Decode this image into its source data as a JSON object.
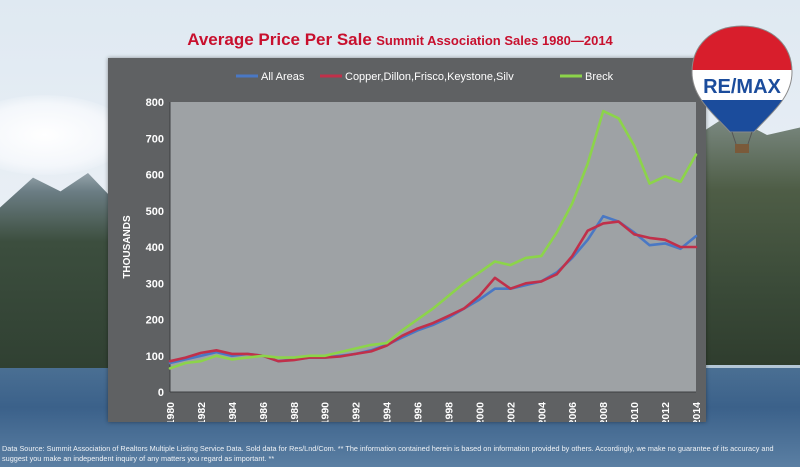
{
  "title": "Average Price Per Sale",
  "subtitle": "Summit Association Sales 1980—2014",
  "logo_text": "RE/MAX",
  "footer": "Data Source: Summit Association of Realtors Multiple Listing Service Data. Sold data for Res/Lnd/Com. ** The information contained herein is based on information provided by others. Accordingly, we make no guarantee of its accuracy and suggest you make an independent inquiry of any matters you regard as important. **",
  "colors": {
    "title": "#c8102e",
    "all_areas": "#4a78c4",
    "copper": "#c0304a",
    "breck": "#8cd44a",
    "plot_bg": "#9ea2a5",
    "panel_bg": "#5f6163"
  },
  "chart_data": {
    "type": "line",
    "title": "Average Price Per Sale",
    "subtitle": "Summit Association Sales 1980—2014",
    "xlabel": "",
    "ylabel": "THOUSANDS",
    "ylim": [
      0,
      800
    ],
    "yticks": [
      0,
      100,
      200,
      300,
      400,
      500,
      600,
      700,
      800
    ],
    "xticks": [
      1980,
      1982,
      1984,
      1986,
      1988,
      1990,
      1992,
      1994,
      1996,
      1998,
      2000,
      2002,
      2004,
      2006,
      2008,
      2010,
      2012,
      2014
    ],
    "grid": false,
    "legend": "top",
    "x": [
      1980,
      1981,
      1982,
      1983,
      1984,
      1985,
      1986,
      1987,
      1988,
      1989,
      1990,
      1991,
      1992,
      1993,
      1994,
      1995,
      1996,
      1997,
      1998,
      1999,
      2000,
      2001,
      2002,
      2003,
      2004,
      2005,
      2006,
      2007,
      2008,
      2009,
      2010,
      2011,
      2012,
      2013,
      2014
    ],
    "series": [
      {
        "name": "All Areas",
        "color": "#4a78c4",
        "values": [
          80,
          90,
          100,
          110,
          100,
          105,
          100,
          85,
          90,
          95,
          95,
          100,
          105,
          115,
          130,
          150,
          170,
          185,
          205,
          230,
          255,
          285,
          285,
          295,
          305,
          330,
          370,
          420,
          485,
          470,
          440,
          405,
          410,
          395,
          430
        ]
      },
      {
        "name": "Copper,Dillon,Frisco,Keystone,Silv",
        "color": "#c0304a",
        "values": [
          85,
          95,
          108,
          115,
          105,
          105,
          100,
          85,
          88,
          95,
          95,
          98,
          105,
          112,
          128,
          155,
          175,
          190,
          210,
          230,
          265,
          315,
          285,
          300,
          305,
          325,
          375,
          445,
          465,
          470,
          435,
          425,
          420,
          400,
          400
        ]
      },
      {
        "name": "Breck",
        "color": "#8cd44a",
        "values": [
          65,
          80,
          85,
          100,
          90,
          95,
          100,
          95,
          95,
          100,
          100,
          110,
          120,
          130,
          135,
          170,
          200,
          230,
          265,
          300,
          330,
          360,
          350,
          370,
          375,
          440,
          520,
          630,
          775,
          755,
          680,
          575,
          595,
          580,
          655
        ]
      }
    ]
  }
}
